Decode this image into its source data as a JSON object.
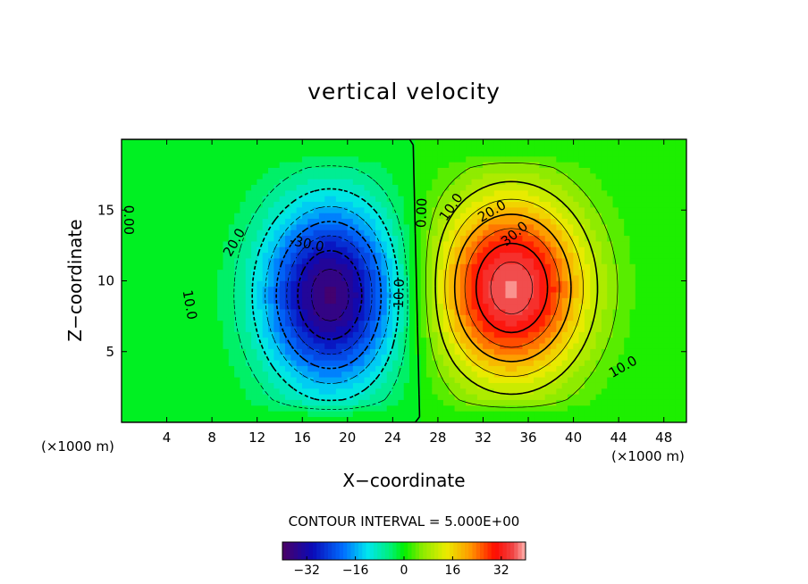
{
  "chart_data": {
    "type": "heatmap",
    "title": "vertical velocity",
    "xlabel": "X−coordinate",
    "ylabel": "Z−coordinate",
    "x_unit_left": "(×1000 m)",
    "x_unit_right": "(×1000 m)",
    "xlim": [
      0,
      50
    ],
    "ylim": [
      0,
      20
    ],
    "x_ticks": [
      4,
      8,
      12,
      16,
      20,
      24,
      28,
      32,
      36,
      40,
      44,
      48
    ],
    "y_ticks": [
      5,
      10,
      15
    ],
    "x_tick_labels": [
      "4",
      "8",
      "12",
      "16",
      "20",
      "24",
      "28",
      "32",
      "36",
      "40",
      "44",
      "48"
    ],
    "y_tick_labels": [
      "5",
      "10",
      "15"
    ],
    "contour_interval_text": "CONTOUR INTERVAL = 5.000E+00",
    "contour_interval": 5,
    "value_range": [
      -40,
      40
    ],
    "extrema": [
      {
        "name": "downdraft",
        "x": 18.5,
        "z": 9,
        "value": -38
      },
      {
        "name": "updraft",
        "x": 34.5,
        "z": 9.5,
        "value": 38
      }
    ],
    "contour_labels": [
      {
        "text": "0.00",
        "x": 0.6,
        "z": 14.3,
        "angle": 90
      },
      {
        "text": "10.0",
        "x": 6,
        "z": 8.3,
        "angle": 80
      },
      {
        "text": "20.0",
        "x": 10,
        "z": 12.7,
        "angle": -60
      },
      {
        "text": "-30.0",
        "x": 16.4,
        "z": 12.6,
        "angle": 12
      },
      {
        "text": "10.0",
        "x": 24.6,
        "z": 9.1,
        "angle": -88
      },
      {
        "text": "0.00",
        "x": 26.6,
        "z": 14.8,
        "angle": -88
      },
      {
        "text": "10.0",
        "x": 29.2,
        "z": 15.2,
        "angle": -55
      },
      {
        "text": "20.0",
        "x": 32.8,
        "z": 14.9,
        "angle": -30
      },
      {
        "text": "30.0",
        "x": 34.8,
        "z": 13.3,
        "angle": -40
      },
      {
        "text": "10.0",
        "x": 44.4,
        "z": 3.9,
        "angle": -30
      }
    ],
    "colorbar": {
      "ticks": [
        -32,
        -16,
        0,
        16,
        32
      ],
      "tick_labels": [
        "−32",
        "−16",
        "0",
        "16",
        "32"
      ],
      "range": [
        -40,
        40
      ]
    }
  }
}
